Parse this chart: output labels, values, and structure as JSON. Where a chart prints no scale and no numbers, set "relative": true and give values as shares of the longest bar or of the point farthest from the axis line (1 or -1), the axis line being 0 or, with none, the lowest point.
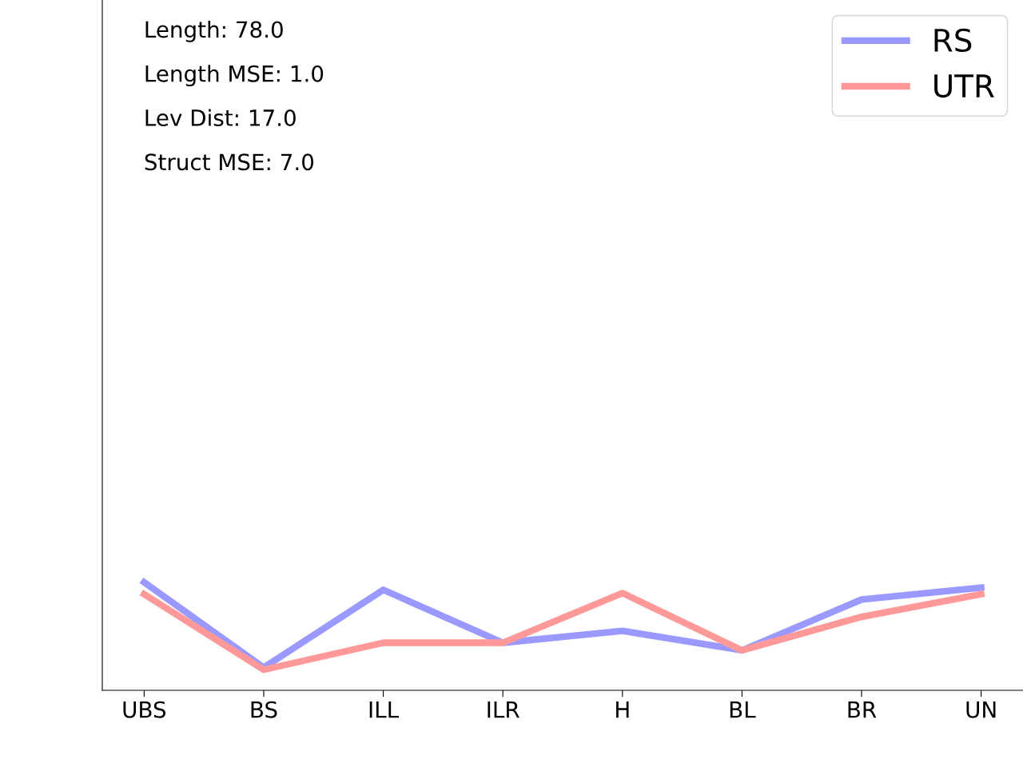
{
  "chart_data": {
    "type": "line",
    "relative": true,
    "categories": [
      "UBS",
      "BS",
      "ILL",
      "ILR",
      "H",
      "BL",
      "BR",
      "UN"
    ],
    "series": [
      {
        "name": "RS",
        "color": "#9999ff",
        "values": [
          1.0,
          0.21,
          0.93,
          0.44,
          0.55,
          0.37,
          0.84,
          0.95
        ]
      },
      {
        "name": "UTR",
        "color": "#ff9999",
        "values": [
          0.89,
          0.19,
          0.44,
          0.44,
          0.9,
          0.37,
          0.68,
          0.89
        ]
      }
    ],
    "annotations": [
      "Length: 78.0",
      "Length MSE: 1.0",
      "Lev Dist: 17.0",
      "Struct MSE: 7.0"
    ],
    "legend": "top right",
    "grid": false,
    "tick_labels": "x",
    "marker": "none",
    "line_style": "solid"
  }
}
